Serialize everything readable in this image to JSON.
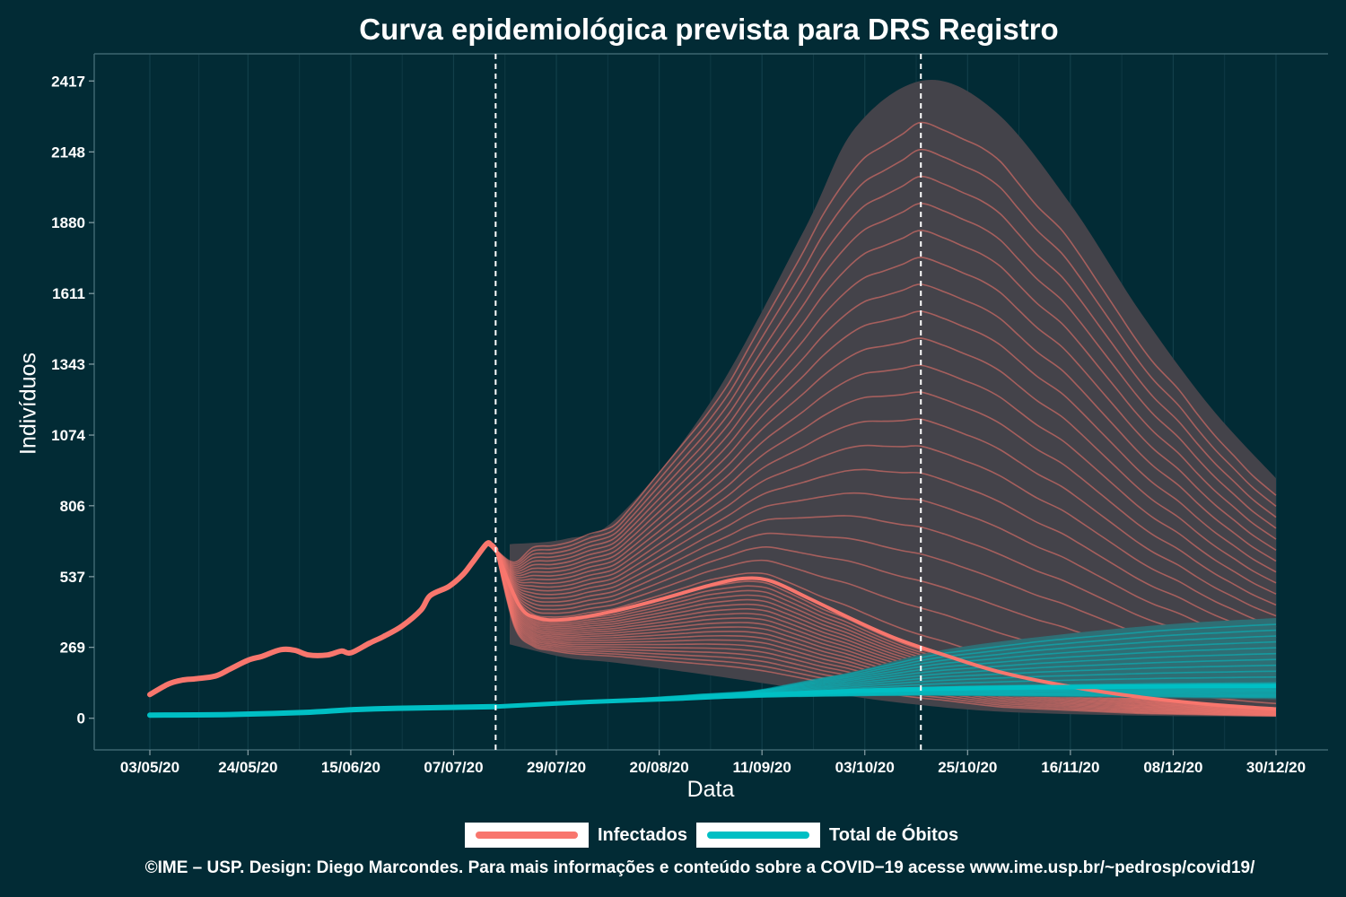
{
  "chart_data": {
    "type": "line",
    "title": "Curva epidemiológica prevista para DRS Registro",
    "xlabel": "Data",
    "ylabel": "Indivíduos",
    "x_ticks": [
      "03/05/20",
      "24/05/20",
      "15/06/20",
      "07/07/20",
      "29/07/20",
      "20/08/20",
      "11/09/20",
      "03/10/20",
      "25/10/20",
      "16/11/20",
      "08/12/20",
      "30/12/20"
    ],
    "y_ticks": [
      "0",
      "269",
      "537",
      "806",
      "1074",
      "1343",
      "1611",
      "1880",
      "2148",
      "2417"
    ],
    "x_range": [
      "2020-05-03",
      "2020-12-30"
    ],
    "ylim": [
      -120,
      2520
    ],
    "vertical_lines": [
      "2020-07-16",
      "2020-10-15"
    ],
    "grid": true,
    "legend_position": "bottom",
    "series": [
      {
        "name": "Infectados",
        "color": "#f8766d",
        "observed": [
          [
            "2020-05-03",
            90
          ],
          [
            "2020-05-07",
            130
          ],
          [
            "2020-05-10",
            145
          ],
          [
            "2020-05-13",
            150
          ],
          [
            "2020-05-17",
            160
          ],
          [
            "2020-05-20",
            185
          ],
          [
            "2020-05-24",
            220
          ],
          [
            "2020-05-27",
            235
          ],
          [
            "2020-05-31",
            260
          ],
          [
            "2020-06-03",
            258
          ],
          [
            "2020-06-06",
            240
          ],
          [
            "2020-06-10",
            240
          ],
          [
            "2020-06-13",
            255
          ],
          [
            "2020-06-15",
            248
          ],
          [
            "2020-06-19",
            285
          ],
          [
            "2020-06-22",
            310
          ],
          [
            "2020-06-26",
            350
          ],
          [
            "2020-06-30",
            410
          ],
          [
            "2020-07-02",
            465
          ],
          [
            "2020-07-06",
            500
          ],
          [
            "2020-07-09",
            545
          ],
          [
            "2020-07-11",
            590
          ],
          [
            "2020-07-14",
            660
          ],
          [
            "2020-07-15",
            658
          ],
          [
            "2020-07-16",
            640
          ]
        ],
        "projection_median": [
          [
            "2020-07-16",
            640
          ],
          [
            "2020-07-21",
            430
          ],
          [
            "2020-07-25",
            380
          ],
          [
            "2020-07-31",
            375
          ],
          [
            "2020-08-10",
            405
          ],
          [
            "2020-08-20",
            450
          ],
          [
            "2020-08-31",
            505
          ],
          [
            "2020-09-07",
            530
          ],
          [
            "2020-09-13",
            520
          ],
          [
            "2020-09-21",
            455
          ],
          [
            "2020-10-01",
            370
          ],
          [
            "2020-10-10",
            300
          ],
          [
            "2020-10-20",
            240
          ],
          [
            "2020-11-01",
            175
          ],
          [
            "2020-11-16",
            120
          ],
          [
            "2020-12-01",
            80
          ],
          [
            "2020-12-16",
            52
          ],
          [
            "2020-12-30",
            35
          ]
        ],
        "band_upper": [
          [
            "2020-07-19",
            660
          ],
          [
            "2020-07-31",
            680
          ],
          [
            "2020-08-11",
            760
          ],
          [
            "2020-08-31",
            1200
          ],
          [
            "2020-09-20",
            1850
          ],
          [
            "2020-10-01",
            2240
          ],
          [
            "2020-10-16",
            2420
          ],
          [
            "2020-10-31",
            2300
          ],
          [
            "2020-11-16",
            1950
          ],
          [
            "2020-12-01",
            1540
          ],
          [
            "2020-12-16",
            1180
          ],
          [
            "2020-12-30",
            910
          ]
        ],
        "band_lower": [
          [
            "2020-07-19",
            280
          ],
          [
            "2020-07-31",
            230
          ],
          [
            "2020-08-11",
            210
          ],
          [
            "2020-09-01",
            160
          ],
          [
            "2020-09-20",
            110
          ],
          [
            "2020-10-10",
            60
          ],
          [
            "2020-11-01",
            25
          ],
          [
            "2020-12-01",
            10
          ],
          [
            "2020-12-30",
            5
          ]
        ]
      },
      {
        "name": "Total de Óbitos",
        "color": "#00bfc4",
        "observed": [
          [
            "2020-05-03",
            12
          ],
          [
            "2020-05-20",
            14
          ],
          [
            "2020-06-05",
            22
          ],
          [
            "2020-06-15",
            32
          ],
          [
            "2020-06-25",
            38
          ],
          [
            "2020-07-16",
            44
          ]
        ],
        "projection_median": [
          [
            "2020-07-16",
            44
          ],
          [
            "2020-08-05",
            62
          ],
          [
            "2020-08-25",
            75
          ],
          [
            "2020-09-15",
            92
          ],
          [
            "2020-10-05",
            106
          ],
          [
            "2020-10-25",
            114
          ],
          [
            "2020-11-15",
            118
          ],
          [
            "2020-12-05",
            121
          ],
          [
            "2020-12-30",
            123
          ]
        ],
        "band_upper": [
          [
            "2020-07-19",
            48
          ],
          [
            "2020-08-20",
            80
          ],
          [
            "2020-09-10",
            105
          ],
          [
            "2020-09-30",
            175
          ],
          [
            "2020-10-20",
            260
          ],
          [
            "2020-11-15",
            320
          ],
          [
            "2020-12-10",
            360
          ],
          [
            "2020-12-30",
            380
          ]
        ],
        "band_lower": [
          [
            "2020-07-19",
            44
          ],
          [
            "2020-08-20",
            70
          ],
          [
            "2020-09-15",
            80
          ],
          [
            "2020-10-15",
            85
          ],
          [
            "2020-11-15",
            80
          ],
          [
            "2020-12-30",
            72
          ]
        ]
      }
    ]
  },
  "legend": {
    "items": [
      {
        "label": "Infectados",
        "color": "#f8766d"
      },
      {
        "label": "Total de Óbitos",
        "color": "#00bfc4"
      }
    ]
  },
  "caption": "©IME – USP. Design: Diego Marcondes. Para mais informações e conteúdo sobre a COVID−19 acesse www.ime.usp.br/~pedrosp/covid19/"
}
